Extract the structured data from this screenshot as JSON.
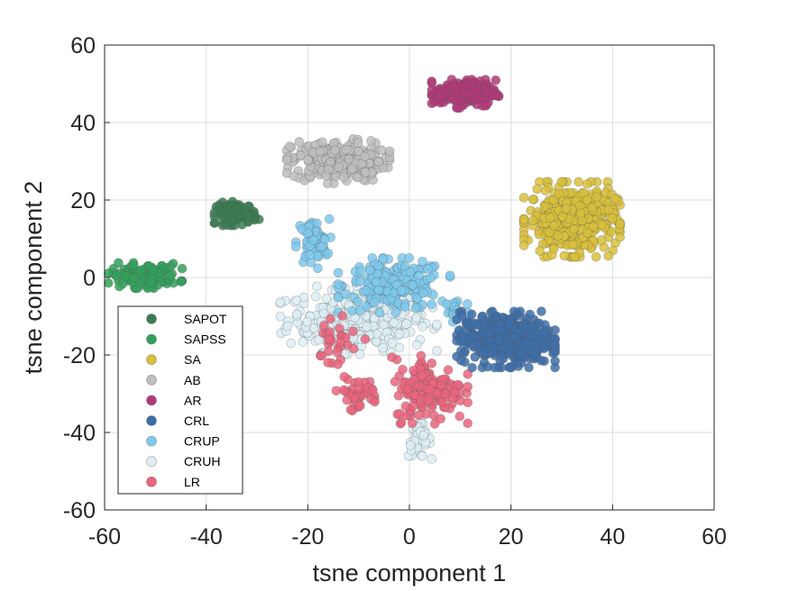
{
  "chart_data": {
    "type": "scatter",
    "title": "",
    "xlabel": "tsne component 1",
    "ylabel": "tsne component 2",
    "xlim": [
      -60,
      60
    ],
    "ylim": [
      -60,
      60
    ],
    "xticks": [
      -60,
      -40,
      -20,
      0,
      20,
      40,
      60
    ],
    "yticks": [
      -60,
      -40,
      -20,
      0,
      20,
      40,
      60
    ],
    "x_tick_labels": [
      "-60",
      "-40",
      "-20",
      "0",
      "20",
      "40",
      "60"
    ],
    "y_tick_labels": [
      "-60",
      "-40",
      "-20",
      "0",
      "20",
      "40",
      "60"
    ],
    "grid": true,
    "legend_position": "bottom-left",
    "series": [
      {
        "name": "SAPOT",
        "color": "#3a7d52",
        "clusters": [
          {
            "cx": -34,
            "cy": 16.5,
            "sx": 2.0,
            "sy": 1.4,
            "n": 90
          }
        ]
      },
      {
        "name": "SAPSS",
        "color": "#33a05a",
        "clusters": [
          {
            "cx": -52,
            "cy": 0.5,
            "sx": 3.3,
            "sy": 1.5,
            "n": 130
          }
        ]
      },
      {
        "name": "SA",
        "color": "#d8c03c",
        "clusters": [
          {
            "cx": 32,
            "cy": 15,
            "sx": 4.3,
            "sy": 4.4,
            "n": 420
          }
        ]
      },
      {
        "name": "AB",
        "color": "#bebebe",
        "clusters": [
          {
            "cx": -14,
            "cy": 30,
            "sx": 4.6,
            "sy": 2.6,
            "n": 260
          }
        ]
      },
      {
        "name": "AR",
        "color": "#b03a78",
        "clusters": [
          {
            "cx": 11,
            "cy": 47.5,
            "sx": 3.0,
            "sy": 1.7,
            "n": 200
          }
        ]
      },
      {
        "name": "CRL",
        "color": "#3e6ea8",
        "clusters": [
          {
            "cx": 19,
            "cy": -16,
            "sx": 4.4,
            "sy": 3.3,
            "n": 430
          }
        ]
      },
      {
        "name": "CRUP",
        "color": "#7ec9ec",
        "clusters": [
          {
            "cx": -3,
            "cy": -2,
            "sx": 5.0,
            "sy": 3.2,
            "n": 200
          },
          {
            "cx": -19,
            "cy": 9,
            "sx": 1.6,
            "sy": 3.0,
            "n": 60
          },
          {
            "cx": 9,
            "cy": -9,
            "sx": 1.5,
            "sy": 2.5,
            "n": 25
          }
        ]
      },
      {
        "name": "CRUH",
        "color": "#ddeef4",
        "clusters": [
          {
            "cx": -10,
            "cy": -11,
            "sx": 7.0,
            "sy": 4.0,
            "n": 300
          },
          {
            "cx": 2,
            "cy": -42,
            "sx": 1.1,
            "sy": 2.2,
            "n": 40
          }
        ]
      },
      {
        "name": "LR",
        "color": "#e9657c",
        "clusters": [
          {
            "cx": 4,
            "cy": -29,
            "sx": 3.4,
            "sy": 4.0,
            "n": 150
          },
          {
            "cx": -10,
            "cy": -30,
            "sx": 2.0,
            "sy": 2.0,
            "n": 40
          },
          {
            "cx": -15,
            "cy": -16,
            "sx": 3.0,
            "sy": 4.0,
            "n": 30
          }
        ]
      }
    ]
  }
}
